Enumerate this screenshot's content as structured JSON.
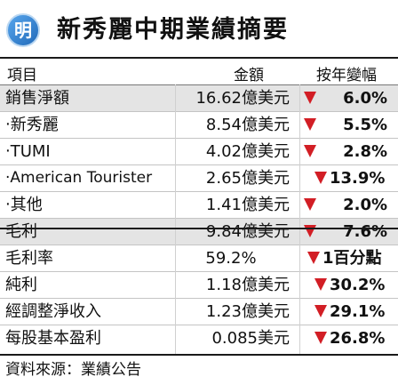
{
  "header": {
    "logo_text": "明",
    "title": "新秀麗中期業績摘要"
  },
  "columns": {
    "item": "項目",
    "amount": "金額",
    "change": "按年變幅"
  },
  "rows": [
    {
      "label": "銷售淨額",
      "amount": "16.62億美元",
      "change": "6.0%",
      "shaded": true,
      "sub": false
    },
    {
      "label": "‧新秀麗",
      "amount": "8.54億美元",
      "change": "5.5%",
      "shaded": false,
      "sub": true
    },
    {
      "label": "‧TUMI",
      "amount": "4.02億美元",
      "change": "2.8%",
      "shaded": false,
      "sub": true
    },
    {
      "label": "‧American Tourister",
      "amount": "2.65億美元",
      "change": "13.9%",
      "shaded": false,
      "sub": true
    },
    {
      "label": "‧其他",
      "amount": "1.41億美元",
      "change": "2.0%",
      "shaded": false,
      "sub": true
    },
    {
      "label": "毛利",
      "amount": "9.84億美元",
      "change": "7.6%",
      "shaded": true,
      "sub": false
    },
    {
      "label": "毛利率",
      "amount": "59.2%",
      "change": "1百分點",
      "shaded": false,
      "sub": false
    },
    {
      "label": "純利",
      "amount": "1.18億美元",
      "change": "30.2%",
      "shaded": false,
      "sub": false
    },
    {
      "label": "經調整淨收入",
      "amount": "1.23億美元",
      "change": "29.1%",
      "shaded": false,
      "sub": false
    },
    {
      "label": "每股基本盈利",
      "amount": "0.085美元",
      "change": "26.8%",
      "shaded": false,
      "sub": false
    }
  ],
  "change_direction": "down",
  "colors": {
    "down_arrow": "#d21e25",
    "logo_blue": "#1f78c8",
    "row_shade": "#e4e4e4"
  },
  "source": "資料來源：業績公告"
}
